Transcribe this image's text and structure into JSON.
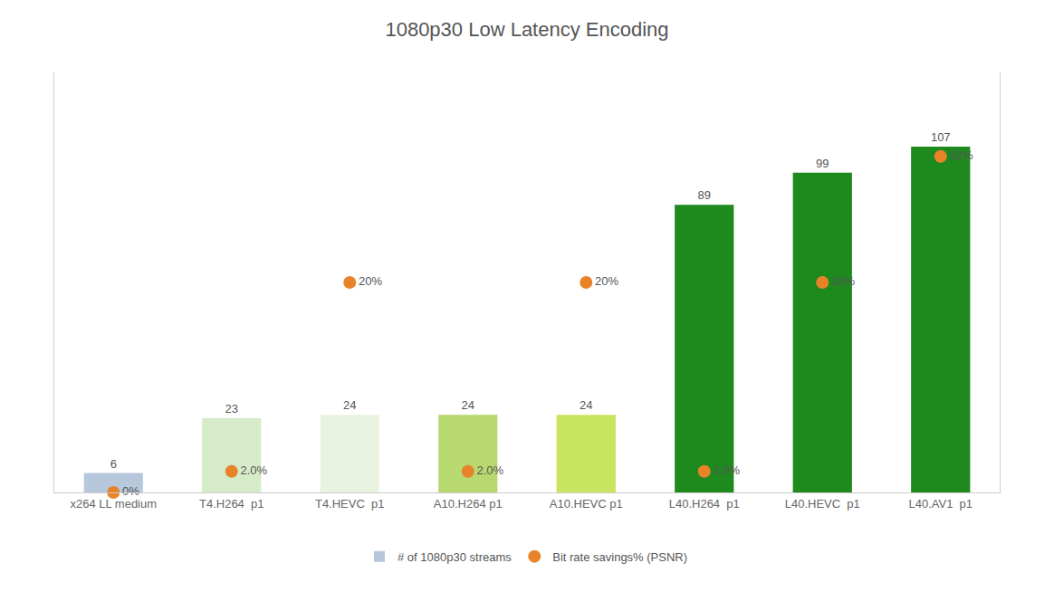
{
  "chart_data": {
    "type": "bar",
    "title": "1080p30 Low Latency Encoding",
    "categories": [
      "x264 LL medium",
      "T4.H264  p1",
      "T4.HEVC  p1",
      "A10.H264 p1",
      "A10.HEVC p1",
      "L40.H264  p1",
      "L40.HEVC  p1",
      "L40.AV1  p1"
    ],
    "series": [
      {
        "name": "# of 1080p30 streams",
        "type": "bar",
        "colors": [
          "#b8c8dc",
          "#d6ecc8",
          "#e8f4e0",
          "#b8d870",
          "#c8e460",
          "#1e8a1e",
          "#1e8a1e",
          "#1e8a1e"
        ],
        "values": [
          6,
          23,
          24,
          24,
          24,
          89,
          99,
          107
        ]
      },
      {
        "name": "Bit rate savings% (PSNR)",
        "type": "scatter",
        "marker": "circle",
        "color": "#E8832A",
        "axis": "y2",
        "values": [
          0,
          2.0,
          20,
          2.0,
          20,
          2.0,
          20,
          32
        ],
        "value_labels": [
          "0%",
          "2.0%",
          "20%",
          "2.0%",
          "20%",
          "2.0%",
          "20%",
          "32%"
        ]
      }
    ],
    "ylim": [
      0,
      130
    ],
    "y2lim": [
      0,
      40
    ],
    "tick_labels": "x",
    "grid": false,
    "legend": "bottom",
    "data_labels": true
  }
}
